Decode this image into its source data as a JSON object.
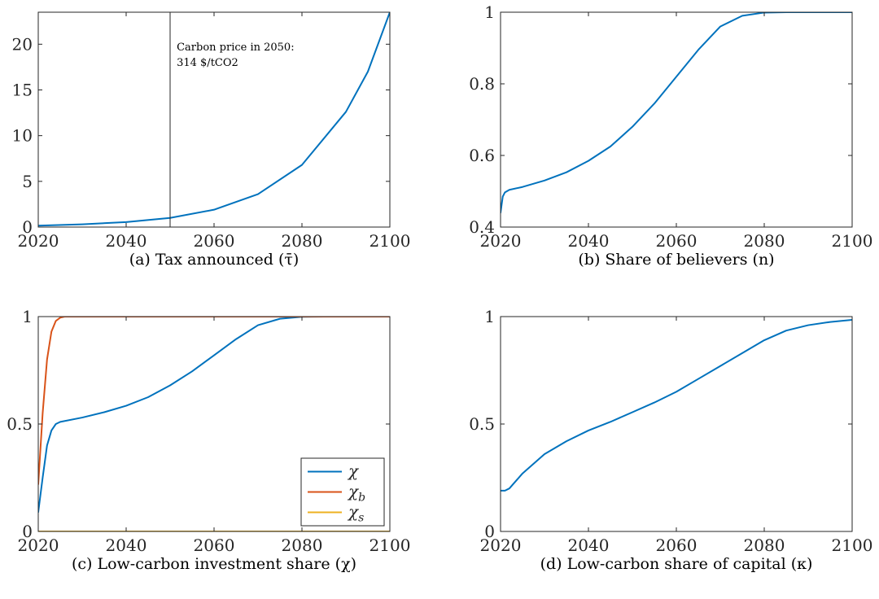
{
  "chart_data": [
    {
      "type": "line",
      "caption": "(a) Tax announced (τ̄)",
      "xlim": [
        2020,
        2100
      ],
      "ylim": [
        0,
        23.5
      ],
      "xticks": [
        2020,
        2040,
        2060,
        2080,
        2100
      ],
      "yticks": [
        0,
        5,
        10,
        15,
        20
      ],
      "grid": false,
      "series": [
        {
          "color": "#0072BD",
          "x": [
            2020,
            2030,
            2040,
            2050,
            2060,
            2070,
            2080,
            2090,
            2095,
            2100
          ],
          "y": [
            0.15,
            0.3,
            0.55,
            1.0,
            1.9,
            3.6,
            6.8,
            12.6,
            17.0,
            23.5
          ]
        }
      ],
      "vline": {
        "x": 2050,
        "color": "#262626"
      },
      "annotation": {
        "lines": [
          "Carbon price in 2050:",
          "314 $/tCO2"
        ],
        "x": 2051.5,
        "y": 19.3
      }
    },
    {
      "type": "line",
      "caption": "(b) Share of believers (n)",
      "xlim": [
        2020,
        2100
      ],
      "ylim": [
        0.4,
        1
      ],
      "xticks": [
        2020,
        2040,
        2060,
        2080,
        2100
      ],
      "yticks": [
        0.4,
        0.6,
        0.8,
        1
      ],
      "grid": false,
      "series": [
        {
          "color": "#0072BD",
          "x": [
            2020,
            2020.5,
            2021,
            2022,
            2025,
            2030,
            2035,
            2040,
            2045,
            2050,
            2055,
            2060,
            2065,
            2070,
            2075,
            2080,
            2085,
            2100
          ],
          "y": [
            0.44,
            0.485,
            0.497,
            0.504,
            0.512,
            0.53,
            0.553,
            0.585,
            0.625,
            0.68,
            0.745,
            0.82,
            0.895,
            0.96,
            0.99,
            0.999,
            1.0,
            1.0
          ]
        }
      ]
    },
    {
      "type": "line",
      "caption": "(c) Low-carbon investment share (χ)",
      "xlim": [
        2020,
        2100
      ],
      "ylim": [
        0,
        1
      ],
      "xticks": [
        2020,
        2040,
        2060,
        2080,
        2100
      ],
      "yticks": [
        0,
        0.5,
        1
      ],
      "grid": false,
      "legend": "bottom-right",
      "series": [
        {
          "name": "χ",
          "name_sub": "",
          "color": "#0072BD",
          "x": [
            2020,
            2021,
            2022,
            2023,
            2024,
            2025,
            2030,
            2035,
            2040,
            2045,
            2050,
            2055,
            2060,
            2065,
            2070,
            2075,
            2080,
            2085,
            2100
          ],
          "y": [
            0.09,
            0.25,
            0.4,
            0.47,
            0.5,
            0.51,
            0.53,
            0.555,
            0.585,
            0.625,
            0.68,
            0.745,
            0.82,
            0.895,
            0.96,
            0.99,
            0.999,
            1.0,
            1.0
          ]
        },
        {
          "name": "χ",
          "name_sub": "b",
          "color": "#D95319",
          "x": [
            2020,
            2021,
            2022,
            2023,
            2024,
            2025,
            2026,
            2100
          ],
          "y": [
            0.22,
            0.55,
            0.8,
            0.93,
            0.98,
            0.995,
            1.0,
            1.0
          ]
        },
        {
          "name": "χ",
          "name_sub": "s",
          "color": "#EDB120",
          "x": [
            2020,
            2100
          ],
          "y": [
            0,
            0
          ]
        }
      ]
    },
    {
      "type": "line",
      "caption": "(d) Low-carbon share of capital (κ)",
      "xlim": [
        2020,
        2100
      ],
      "ylim": [
        0,
        1
      ],
      "xticks": [
        2020,
        2040,
        2060,
        2080,
        2100
      ],
      "yticks": [
        0,
        0.5,
        1
      ],
      "grid": false,
      "series": [
        {
          "color": "#0072BD",
          "x": [
            2020,
            2021,
            2022,
            2025,
            2030,
            2035,
            2040,
            2045,
            2050,
            2055,
            2060,
            2065,
            2070,
            2075,
            2080,
            2085,
            2090,
            2095,
            2100
          ],
          "y": [
            0.19,
            0.19,
            0.2,
            0.27,
            0.36,
            0.42,
            0.47,
            0.51,
            0.555,
            0.6,
            0.65,
            0.71,
            0.77,
            0.83,
            0.89,
            0.935,
            0.96,
            0.975,
            0.985
          ]
        }
      ]
    }
  ]
}
